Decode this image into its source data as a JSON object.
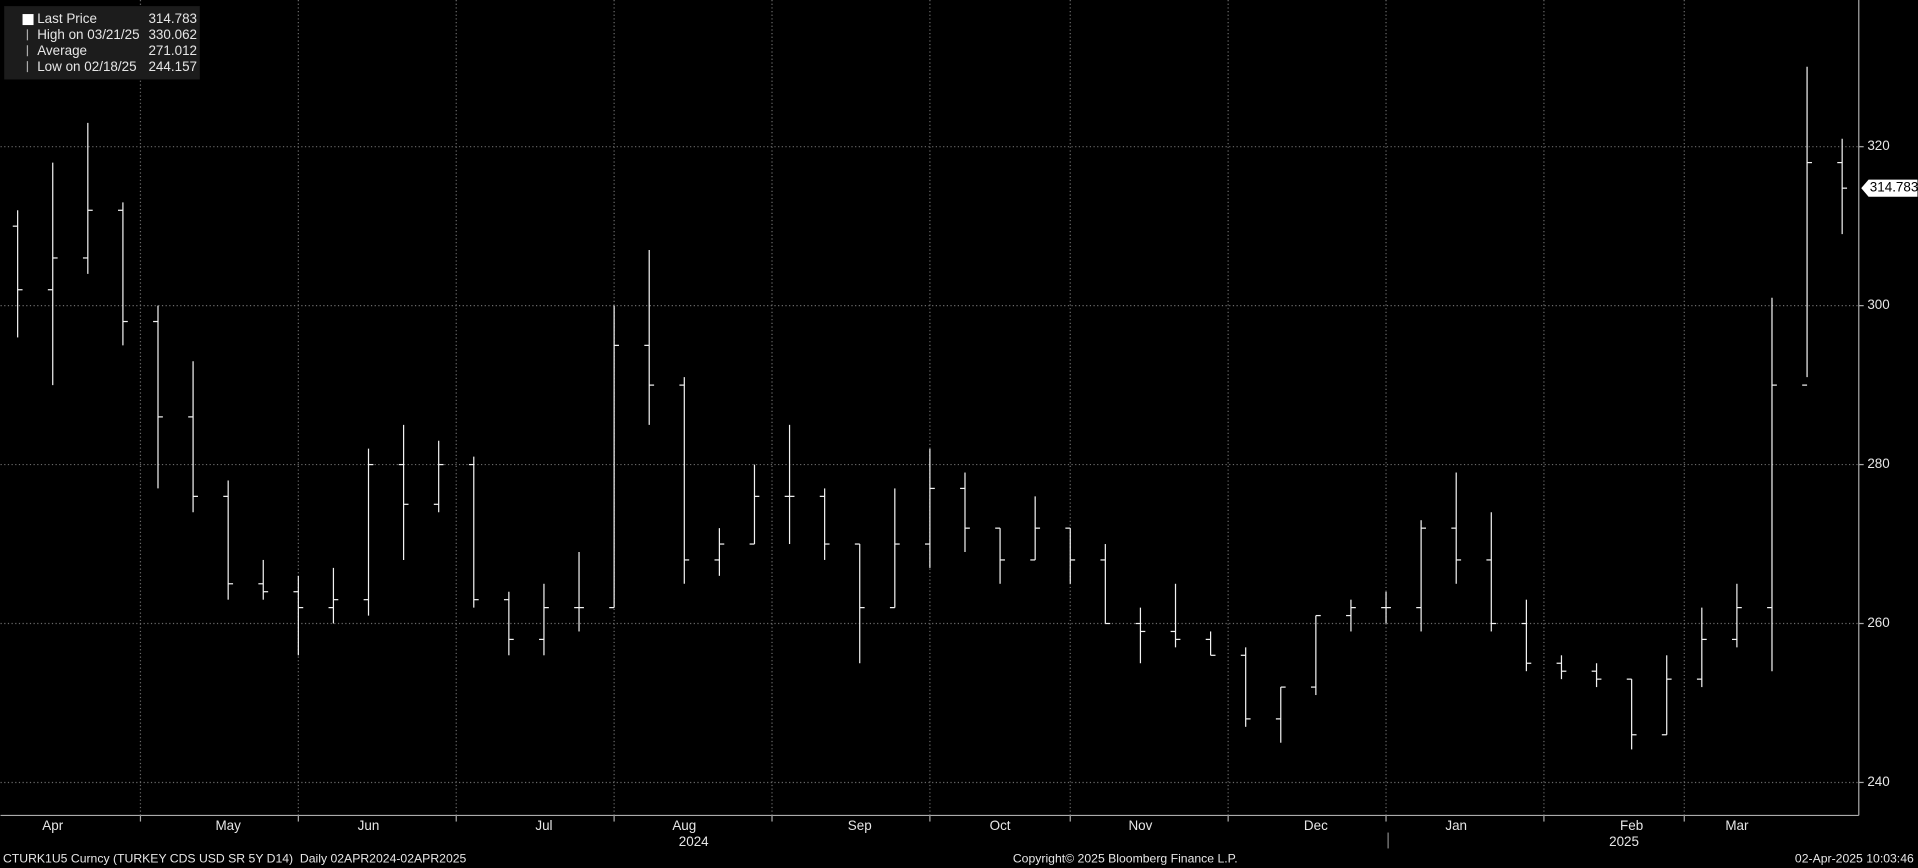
{
  "chart_data": {
    "type": "ohlc",
    "legend": [
      {
        "label": "Last Price",
        "value": "314.783"
      },
      {
        "label": "High on 03/21/25",
        "value": "330.062"
      },
      {
        "label": "Average",
        "value": "271.012"
      },
      {
        "label": "Low on 02/18/25",
        "value": "244.157"
      }
    ],
    "categories": [
      null,
      "Apr",
      null,
      null,
      null,
      null,
      "May",
      null,
      null,
      null,
      "Jun",
      null,
      null,
      null,
      null,
      "Jul",
      null,
      null,
      null,
      "Aug",
      null,
      null,
      null,
      null,
      "Sep",
      null,
      null,
      null,
      "Oct",
      null,
      null,
      null,
      "Nov",
      null,
      null,
      null,
      null,
      "Dec",
      null,
      null,
      null,
      "Jan",
      null,
      null,
      null,
      null,
      "Feb",
      null,
      null,
      "Mar",
      null,
      null,
      null
    ],
    "year_labels": [
      "2024",
      "2025"
    ],
    "open": [
      310,
      302,
      306,
      312,
      298,
      286,
      276,
      265,
      264,
      262,
      263,
      280,
      275,
      280,
      263,
      258,
      262,
      262,
      295,
      290,
      268,
      270,
      276,
      276,
      270,
      262,
      270,
      277,
      272,
      268,
      272,
      268,
      260,
      259,
      258,
      256,
      248,
      252,
      261,
      262,
      262,
      272,
      268,
      260,
      255,
      254,
      253,
      246,
      253,
      258,
      262,
      290,
      318
    ],
    "high": [
      312,
      318,
      323,
      313,
      300,
      293,
      278,
      268,
      266,
      267,
      282,
      285,
      283,
      281,
      264,
      265,
      269,
      300,
      307,
      291,
      272,
      280,
      285,
      277,
      270,
      277,
      282,
      279,
      272,
      276,
      272,
      270,
      262,
      265,
      259,
      257,
      252,
      261,
      263,
      264,
      273,
      279,
      274,
      263,
      256,
      255,
      253,
      256,
      262,
      265,
      301,
      330.062,
      321
    ],
    "low": [
      296,
      290,
      304,
      295,
      277,
      274,
      263,
      263,
      256,
      260,
      261,
      268,
      274,
      262,
      256,
      256,
      259,
      262,
      285,
      265,
      266,
      270,
      270,
      268,
      255,
      262,
      267,
      269,
      265,
      268,
      265,
      260,
      255,
      257,
      256,
      247,
      245,
      251,
      259,
      260,
      259,
      265,
      259,
      254,
      253,
      252,
      244.157,
      246,
      252,
      257,
      254,
      291,
      309
    ],
    "close": [
      302,
      306,
      312,
      298,
      286,
      276,
      265,
      264,
      262,
      263,
      280,
      275,
      280,
      263,
      258,
      262,
      262,
      295,
      290,
      268,
      270,
      276,
      276,
      270,
      262,
      270,
      277,
      272,
      268,
      272,
      268,
      260,
      259,
      258,
      256,
      248,
      252,
      261,
      262,
      262,
      272,
      268,
      260,
      255,
      254,
      253,
      246,
      253,
      258,
      262,
      290,
      318,
      314.783
    ],
    "ylim": [
      235.85,
      338.46
    ],
    "yticks": [
      240,
      260,
      280,
      300,
      320
    ],
    "grid": true,
    "footer_left": "CTURK1U5 Curncy (TURKEY CDS USD SR 5Y D14)  Daily 02APR2024-02APR2025",
    "footer_center": "Copyright© 2025 Bloomberg Finance L.P.",
    "footer_right": "02-Apr-2025 10:03:46"
  }
}
